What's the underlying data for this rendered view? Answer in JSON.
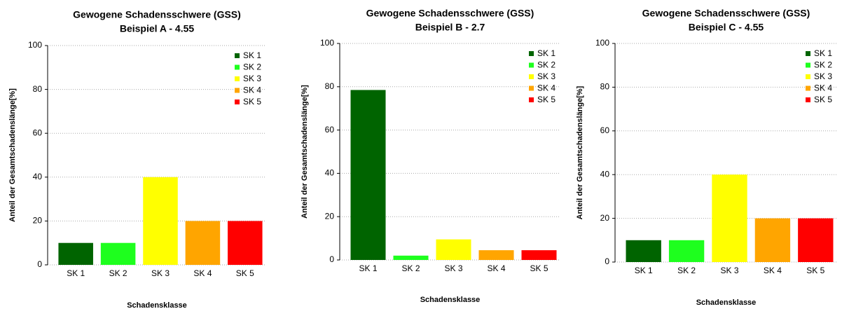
{
  "chart_data": [
    {
      "type": "bar",
      "title": "Gewogene Schadensschwere (GSS)",
      "subtitle": "Beispiel A - 4.55",
      "xlabel": "Schadensklasse",
      "ylabel": "Anteil der Gesamtschadenslänge[%]",
      "categories": [
        "SK 1",
        "SK 2",
        "SK 3",
        "SK 4",
        "SK 5"
      ],
      "values": [
        10,
        10,
        40,
        20,
        20
      ],
      "colors": [
        "#006400",
        "#1eff1e",
        "#ffff00",
        "#ffa500",
        "#ff0000"
      ],
      "ylim": [
        0,
        100
      ],
      "yticks": [
        0,
        20,
        40,
        60,
        80,
        100
      ],
      "grid": true,
      "legend": "upper right"
    },
    {
      "type": "bar",
      "title": "Gewogene Schadensschwere (GSS)",
      "subtitle": "Beispiel B - 2.7",
      "xlabel": "Schadensklasse",
      "ylabel": "Anteil der Gesamtschadenslänge[%]",
      "categories": [
        "SK 1",
        "SK 2",
        "SK 3",
        "SK 4",
        "SK 5"
      ],
      "values": [
        78.5,
        2,
        9.5,
        4.5,
        4.5
      ],
      "colors": [
        "#006400",
        "#1eff1e",
        "#ffff00",
        "#ffa500",
        "#ff0000"
      ],
      "ylim": [
        0,
        100
      ],
      "yticks": [
        0,
        20,
        40,
        60,
        80,
        100
      ],
      "grid": true,
      "legend": "upper right"
    },
    {
      "type": "bar",
      "title": "Gewogene Schadensschwere (GSS)",
      "subtitle": "Beispiel C - 4.55",
      "xlabel": "Schadensklasse",
      "ylabel": "Anteil der Gesamtschadenslänge[%]",
      "categories": [
        "SK 1",
        "SK 2",
        "SK 3",
        "SK 4",
        "SK 5"
      ],
      "values": [
        10,
        10,
        40,
        20,
        20
      ],
      "colors": [
        "#006400",
        "#1eff1e",
        "#ffff00",
        "#ffa500",
        "#ff0000"
      ],
      "ylim": [
        0,
        100
      ],
      "yticks": [
        0,
        20,
        40,
        60,
        80,
        100
      ],
      "grid": true,
      "legend": "upper right"
    }
  ]
}
